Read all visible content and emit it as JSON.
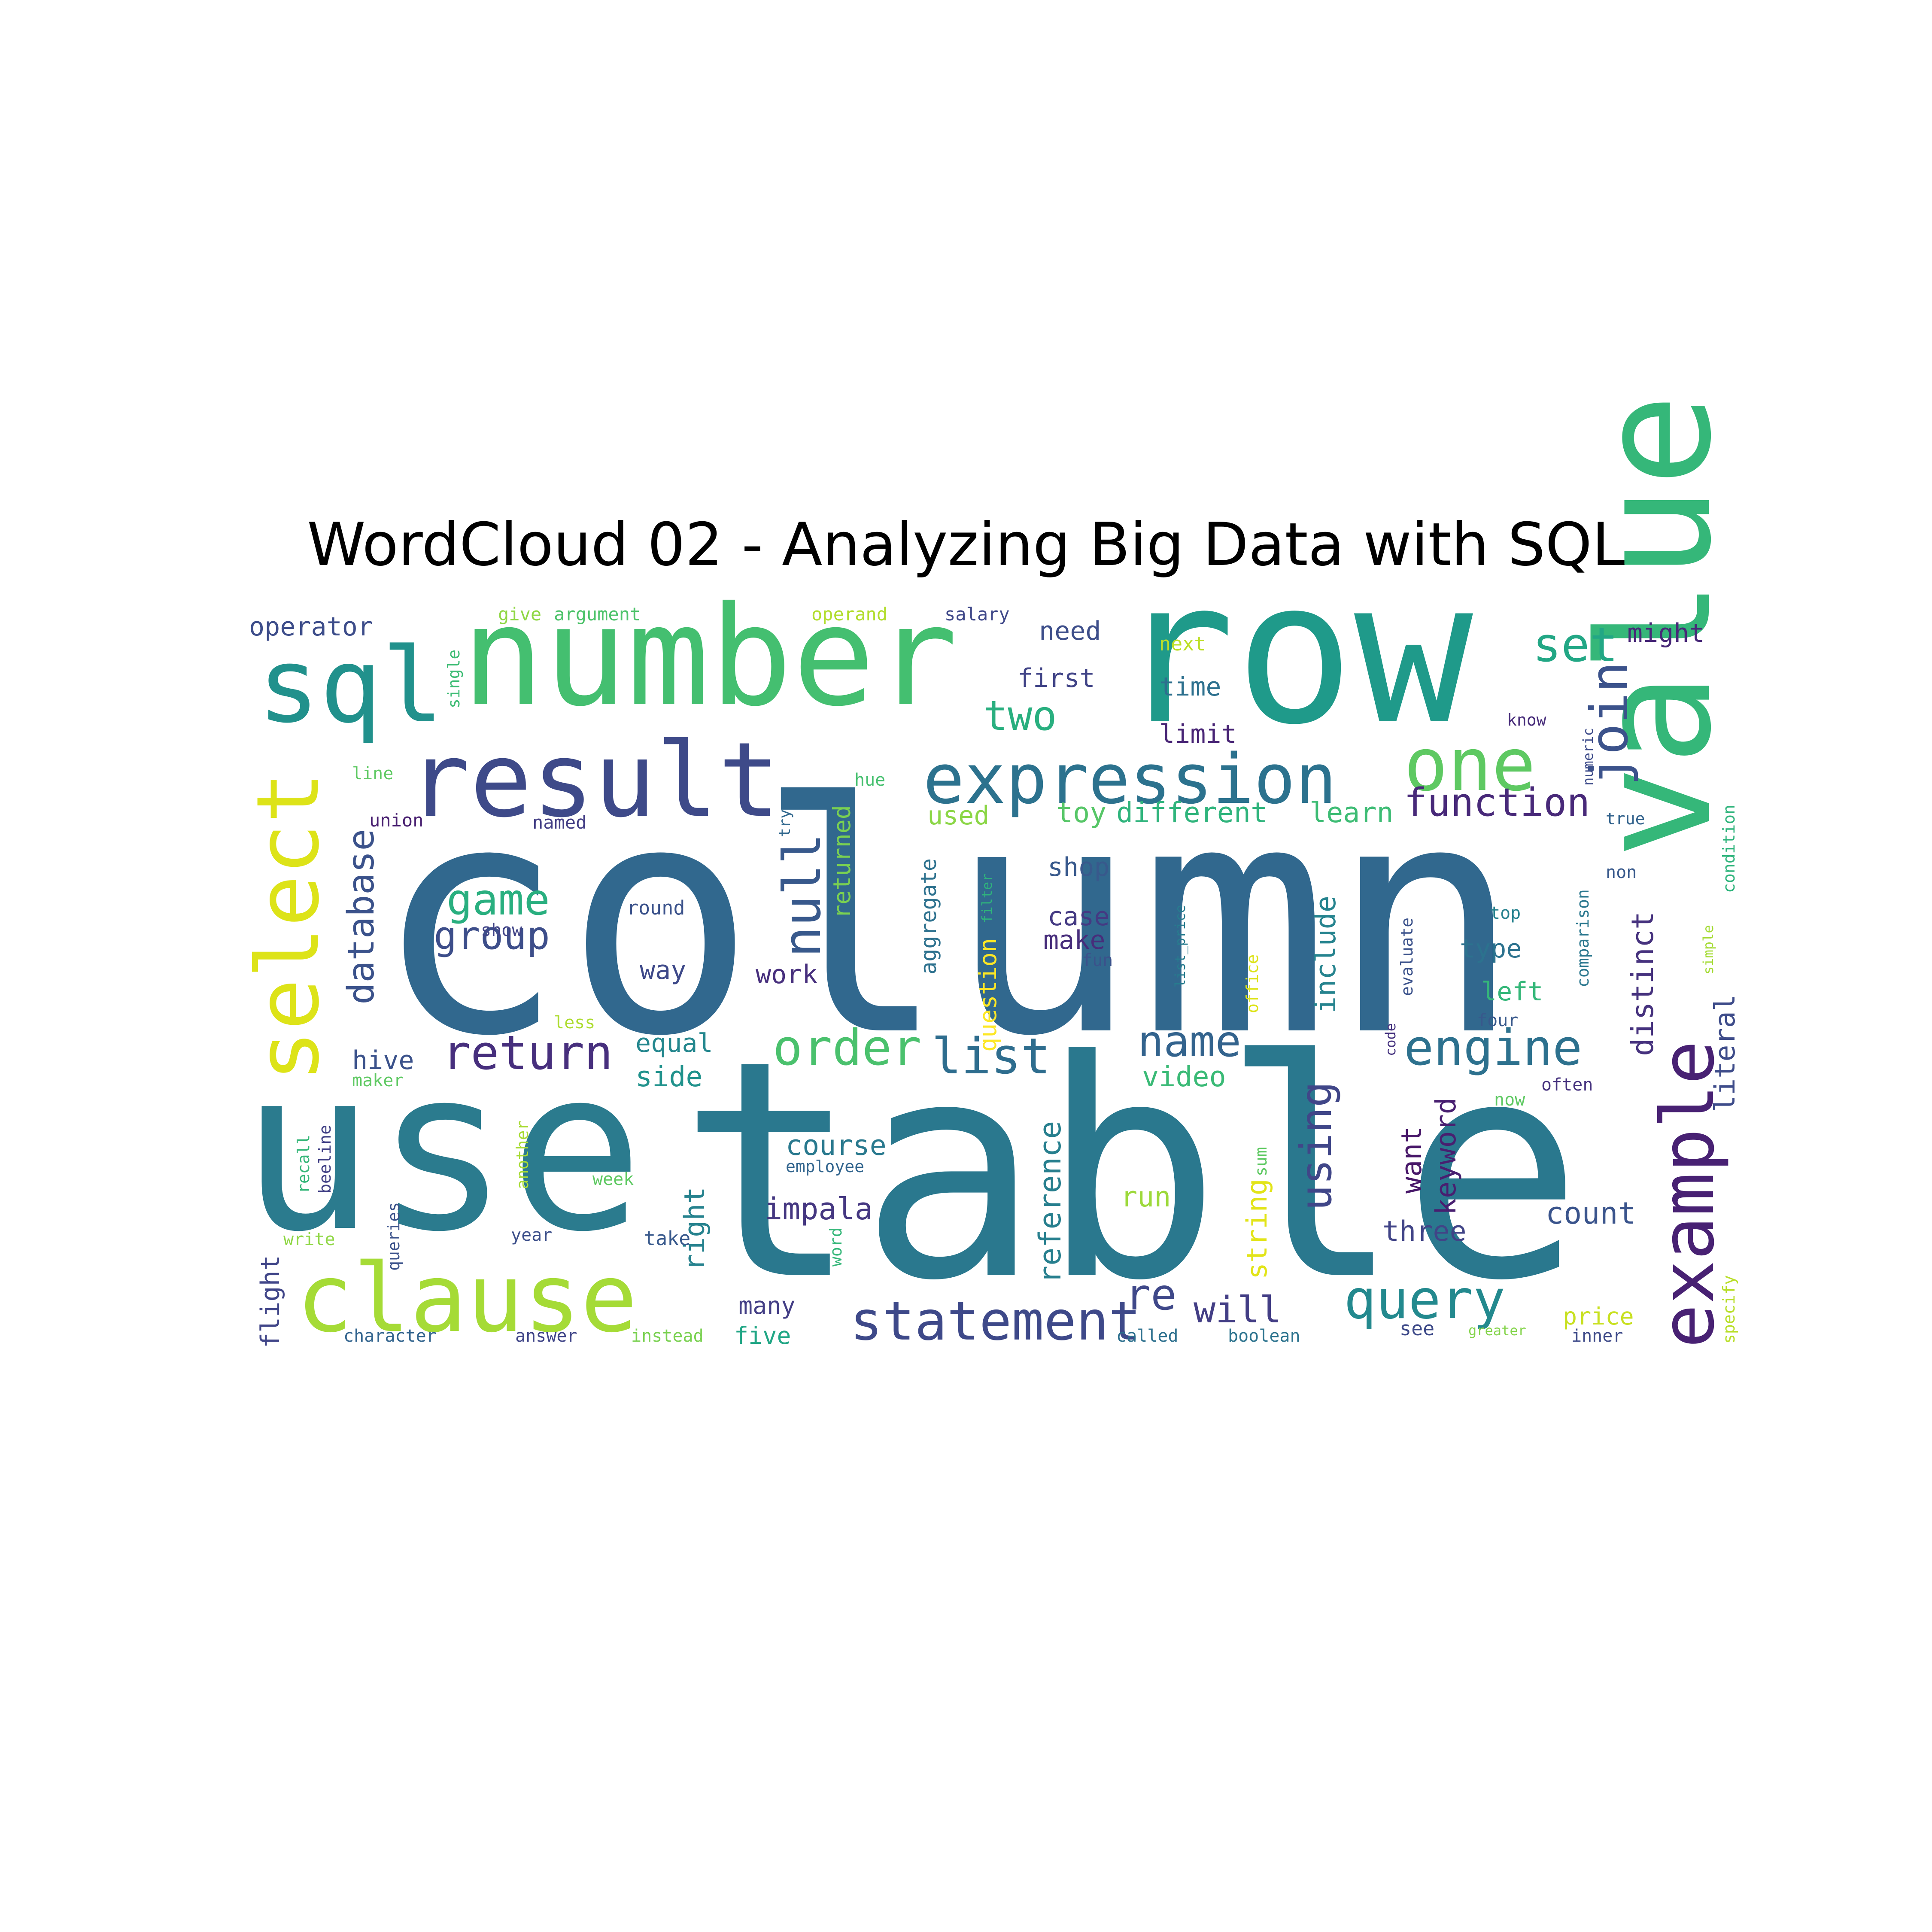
{
  "title": "WordCloud 02 - Analyzing Big Data with SQL",
  "chart_data": {
    "type": "wordcloud",
    "title": "WordCloud 02 - Analyzing Big Data with SQL",
    "colormap": "viridis",
    "background": "#ffffff",
    "words": [
      {
        "text": "column",
        "color": "#31688e"
      },
      {
        "text": "table",
        "color": "#2a788e"
      },
      {
        "text": "row",
        "color": "#1f9a8a"
      },
      {
        "text": "use",
        "color": "#2b7b8e"
      },
      {
        "text": "number",
        "color": "#44bf70"
      },
      {
        "text": "value",
        "color": "#35b779"
      },
      {
        "text": "sql",
        "color": "#21918c"
      },
      {
        "text": "result",
        "color": "#3e4a89"
      },
      {
        "text": "select",
        "color": "#dde318"
      },
      {
        "text": "clause",
        "color": "#a5db36"
      },
      {
        "text": "example",
        "color": "#482173"
      },
      {
        "text": "expression",
        "color": "#2c728e"
      },
      {
        "text": "one",
        "color": "#5ec962"
      },
      {
        "text": "statement",
        "color": "#3e4989"
      },
      {
        "text": "query",
        "color": "#23898e"
      },
      {
        "text": "order",
        "color": "#4ac16d"
      },
      {
        "text": "list",
        "color": "#2e6d8e"
      },
      {
        "text": "engine",
        "color": "#2d718e"
      },
      {
        "text": "return",
        "color": "#472f7d"
      },
      {
        "text": "null",
        "color": "#38598c"
      },
      {
        "text": "join",
        "color": "#3b528b"
      },
      {
        "text": "set",
        "color": "#22a785"
      },
      {
        "text": "function",
        "color": "#482979"
      },
      {
        "text": "database",
        "color": "#3b528b"
      },
      {
        "text": "game",
        "color": "#29af7f"
      },
      {
        "text": "group",
        "color": "#3d4e8a"
      },
      {
        "text": "name",
        "color": "#33638d"
      },
      {
        "text": "using",
        "color": "#404688"
      },
      {
        "text": "re",
        "color": "#3f4889"
      },
      {
        "text": "will",
        "color": "#433e85"
      },
      {
        "text": "two",
        "color": "#29af7f"
      },
      {
        "text": "different",
        "color": "#2fb47c"
      },
      {
        "text": "learn",
        "color": "#3dbc74"
      },
      {
        "text": "toy",
        "color": "#56c667"
      },
      {
        "text": "distinct",
        "color": "#46327e"
      },
      {
        "text": "literal",
        "color": "#3e4c8a"
      },
      {
        "text": "reference",
        "color": "#277f8e"
      },
      {
        "text": "impala",
        "color": "#453781"
      },
      {
        "text": "count",
        "color": "#3a548c"
      },
      {
        "text": "include",
        "color": "#25838e"
      },
      {
        "text": "want",
        "color": "#481769"
      },
      {
        "text": "keyword",
        "color": "#481f70"
      },
      {
        "text": "three",
        "color": "#414487"
      },
      {
        "text": "course",
        "color": "#29798e"
      },
      {
        "text": "string",
        "color": "#e2e418"
      },
      {
        "text": "right",
        "color": "#26828e"
      },
      {
        "text": "video",
        "color": "#3aba76"
      },
      {
        "text": "run",
        "color": "#9dd93b"
      },
      {
        "text": "side",
        "color": "#20928c"
      },
      {
        "text": "equal",
        "color": "#24878e"
      },
      {
        "text": "hive",
        "color": "#3b528b"
      },
      {
        "text": "operator",
        "color": "#3d4d8a"
      },
      {
        "text": "need",
        "color": "#3d4e8a"
      },
      {
        "text": "might",
        "color": "#482878"
      },
      {
        "text": "first",
        "color": "#414487"
      },
      {
        "text": "time",
        "color": "#2d708e"
      },
      {
        "text": "limit",
        "color": "#482475"
      },
      {
        "text": "used",
        "color": "#8bd646"
      },
      {
        "text": "shop",
        "color": "#38598c"
      },
      {
        "text": "case",
        "color": "#443a83"
      },
      {
        "text": "make",
        "color": "#472d7b"
      },
      {
        "text": "question",
        "color": "#fde725"
      },
      {
        "text": "aggregate",
        "color": "#2d718e"
      },
      {
        "text": "returned",
        "color": "#7ad151"
      },
      {
        "text": "way",
        "color": "#3e4989"
      },
      {
        "text": "work",
        "color": "#472f7d"
      },
      {
        "text": "type",
        "color": "#2c728e"
      },
      {
        "text": "left",
        "color": "#35b779"
      },
      {
        "text": "named",
        "color": "#433e85"
      },
      {
        "text": "union",
        "color": "#481f70"
      },
      {
        "text": "round",
        "color": "#3b528b"
      },
      {
        "text": "many",
        "color": "#433e85"
      },
      {
        "text": "five",
        "color": "#21a685"
      },
      {
        "text": "price",
        "color": "#c8e020"
      },
      {
        "text": "see",
        "color": "#3e4a89"
      },
      {
        "text": "flight",
        "color": "#404588"
      },
      {
        "text": "give",
        "color": "#8fd744"
      },
      {
        "text": "argument",
        "color": "#4ec36b"
      },
      {
        "text": "operand",
        "color": "#b2dd2d"
      },
      {
        "text": "salary",
        "color": "#3f4889"
      },
      {
        "text": "single",
        "color": "#3dbc74"
      },
      {
        "text": "next",
        "color": "#bddf26"
      },
      {
        "text": "hue",
        "color": "#46c06f"
      },
      {
        "text": "line",
        "color": "#5ec962"
      },
      {
        "text": "show",
        "color": "#414487"
      },
      {
        "text": "less",
        "color": "#addc30"
      },
      {
        "text": "maker",
        "color": "#5ec962"
      },
      {
        "text": "recall",
        "color": "#35b779"
      },
      {
        "text": "beeline",
        "color": "#424186"
      },
      {
        "text": "queries",
        "color": "#3b528b"
      },
      {
        "text": "another",
        "color": "#a8db34"
      },
      {
        "text": "employee",
        "color": "#32658e"
      },
      {
        "text": "week",
        "color": "#5ec962"
      },
      {
        "text": "year",
        "color": "#3c4f8a"
      },
      {
        "text": "take",
        "color": "#38598c"
      },
      {
        "text": "write",
        "color": "#8fd744"
      },
      {
        "text": "character",
        "color": "#32648e"
      },
      {
        "text": "answer",
        "color": "#404588"
      },
      {
        "text": "instead",
        "color": "#7ad151"
      },
      {
        "text": "word",
        "color": "#35b779"
      },
      {
        "text": "called",
        "color": "#2d708e"
      },
      {
        "text": "boolean",
        "color": "#2c738e"
      },
      {
        "text": "inner",
        "color": "#3e4a89"
      },
      {
        "text": "specify",
        "color": "#b8de29"
      },
      {
        "text": "greater",
        "color": "#84d44b"
      },
      {
        "text": "sum",
        "color": "#5ec962"
      },
      {
        "text": "office",
        "color": "#dde318"
      },
      {
        "text": "list_price",
        "color": "#287c8e"
      },
      {
        "text": "fun",
        "color": "#3b528b"
      },
      {
        "text": "top",
        "color": "#26818e"
      },
      {
        "text": "four",
        "color": "#38598c"
      },
      {
        "text": "now",
        "color": "#5ec962"
      },
      {
        "text": "often",
        "color": "#46327e"
      },
      {
        "text": "evaluate",
        "color": "#3b528b"
      },
      {
        "text": "comparison",
        "color": "#2a778e"
      },
      {
        "text": "condition",
        "color": "#2fb47c"
      },
      {
        "text": "simple",
        "color": "#a5db36"
      },
      {
        "text": "true",
        "color": "#33638d"
      },
      {
        "text": "non",
        "color": "#38598c"
      },
      {
        "text": "numeric",
        "color": "#3e4c8a"
      },
      {
        "text": "know",
        "color": "#472c7a"
      },
      {
        "text": "try",
        "color": "#31688e"
      },
      {
        "text": "filter",
        "color": "#2fb47c"
      },
      {
        "text": "code",
        "color": "#46337f"
      }
    ]
  }
}
